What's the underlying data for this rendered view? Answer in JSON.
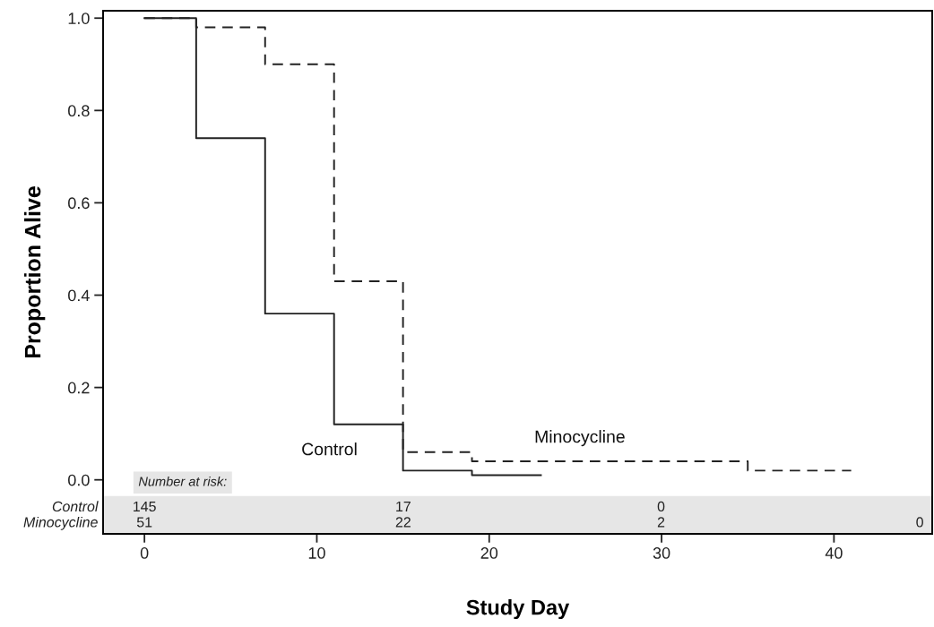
{
  "chart_data": {
    "type": "step",
    "xlabel": "Study Day",
    "ylabel": "Proportion Alive",
    "series": [
      {
        "name": "Control",
        "color": "#222222",
        "line_style": "solid",
        "x": [
          0,
          3,
          7,
          11,
          15,
          19,
          23
        ],
        "values": [
          1.0,
          0.74,
          0.36,
          0.12,
          0.02,
          0.01,
          0.01
        ]
      },
      {
        "name": "Minocycline",
        "color": "#222222",
        "line_style": "dashed",
        "x": [
          0,
          3,
          7,
          11,
          15,
          19,
          35,
          41
        ],
        "values": [
          1.0,
          0.98,
          0.9,
          0.43,
          0.06,
          0.04,
          0.02,
          0.02
        ]
      }
    ],
    "xlim": [
      -2.4,
      45.7
    ],
    "ylim": [
      -0.117,
      1.016
    ],
    "xticks": [
      0,
      10,
      20,
      30,
      40
    ],
    "yticks": [
      {
        "value": 0,
        "label": "0.0"
      },
      {
        "value": 0.2,
        "label": "0.2"
      },
      {
        "value": 0.4,
        "label": "0.4"
      },
      {
        "value": 0.6,
        "label": "0.6"
      },
      {
        "value": 0.8,
        "label": "0.8"
      },
      {
        "value": 1.0,
        "label": "1.0"
      }
    ],
    "bands": [
      {
        "axis": "y",
        "from": -0.115,
        "to": -0.035,
        "color": "#e6e6e6"
      }
    ],
    "annotations": [
      "Number at risk:",
      "Control",
      "Minocycline",
      "145",
      "17",
      "0",
      "51",
      "22",
      "2",
      "0"
    ],
    "grid": false
  }
}
